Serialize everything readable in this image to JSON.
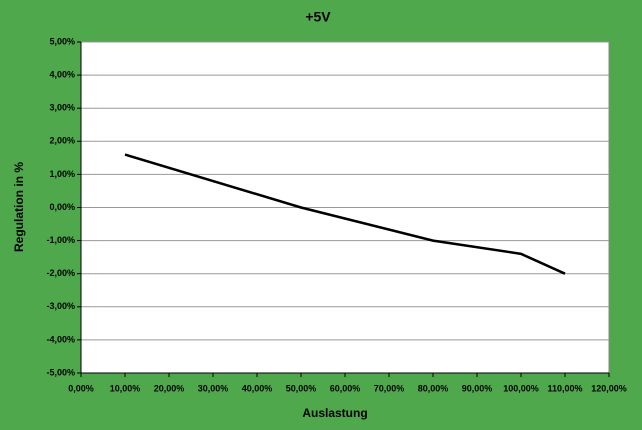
{
  "chart_data": {
    "type": "line",
    "title": "+5V",
    "x_label": "Auslastung",
    "y_label": "Regulation in %",
    "x": [
      10,
      50,
      80,
      100,
      110
    ],
    "series": [
      {
        "name": "+5V",
        "color": "#000000",
        "values": [
          1.6,
          0,
          -1.0,
          -1.4,
          -2.0
        ]
      }
    ],
    "xlim": [
      0,
      120
    ],
    "xticks": [
      {
        "value": 0,
        "label": "0,00%"
      },
      {
        "value": 10,
        "label": "10,00%"
      },
      {
        "value": 20,
        "label": "20,00%"
      },
      {
        "value": 30,
        "label": "30,00%"
      },
      {
        "value": 40,
        "label": "40,00%"
      },
      {
        "value": 50,
        "label": "50,00%"
      },
      {
        "value": 60,
        "label": "60,00%"
      },
      {
        "value": 70,
        "label": "70,00%"
      },
      {
        "value": 80,
        "label": "80,00%"
      },
      {
        "value": 90,
        "label": "90,00%"
      },
      {
        "value": 100,
        "label": "100,00%"
      },
      {
        "value": 110,
        "label": "110,00%"
      },
      {
        "value": 120,
        "label": "120,00%"
      }
    ],
    "ylim": [
      -5,
      5
    ],
    "yticks": [
      {
        "value": -5,
        "label": "-5,00%"
      },
      {
        "value": -4,
        "label": "-4,00%"
      },
      {
        "value": -3,
        "label": "-3,00%"
      },
      {
        "value": -2,
        "label": "-2,00%"
      },
      {
        "value": -1,
        "label": "-1,00%"
      },
      {
        "value": 0,
        "label": "0,00%"
      },
      {
        "value": 1,
        "label": "1,00%"
      },
      {
        "value": 2,
        "label": "2,00%"
      },
      {
        "value": 3,
        "label": "3,00%"
      },
      {
        "value": 4,
        "label": "4,00%"
      },
      {
        "value": 5,
        "label": "5,00%"
      }
    ],
    "grid": true,
    "background": "#4fa84c"
  }
}
